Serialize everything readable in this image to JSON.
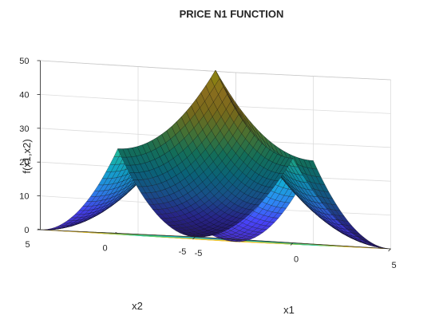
{
  "chart_data": {
    "type": "surface",
    "title": "PRICE N1 FUNCTION",
    "xlabel": "x1",
    "ylabel": "x2",
    "zlabel": "f(x1,x2)",
    "xlim": [
      -5,
      5
    ],
    "ylim": [
      -5,
      5
    ],
    "zlim": [
      0,
      50
    ],
    "x_ticks": [
      "-5",
      "0",
      "5"
    ],
    "y_ticks": [
      "-5",
      "0",
      "5"
    ],
    "z_ticks": [
      "0",
      "10",
      "20",
      "30",
      "40",
      "50"
    ],
    "function": "f(x1,x2) = (|x1| - 5)^2 + (|x2| - 5)^2",
    "grid_points_per_axis": 41,
    "corner_values": [
      {
        "x": -5,
        "y": -5,
        "z": 0
      },
      {
        "x": 5,
        "y": -5,
        "z": 0
      },
      {
        "x": -5,
        "y": 5,
        "z": 0
      },
      {
        "x": 5,
        "y": 5,
        "z": 0
      }
    ],
    "center_value": {
      "x": 0,
      "y": 0,
      "z": 50
    },
    "colormap": [
      "#3e26a8",
      "#4743f8",
      "#2d8df8",
      "#12b2d9",
      "#24c8a0",
      "#7ecd5d",
      "#d7be30",
      "#fcc838",
      "#f9fb15"
    ],
    "contour_on_floor": true,
    "grid": true,
    "box": true
  }
}
